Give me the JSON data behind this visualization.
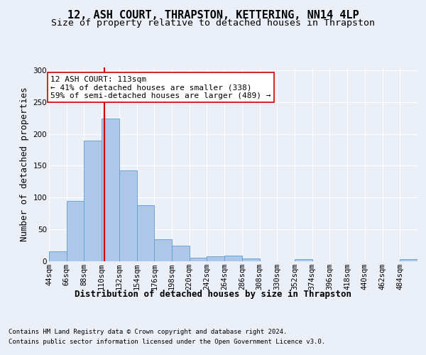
{
  "title": "12, ASH COURT, THRAPSTON, KETTERING, NN14 4LP",
  "subtitle": "Size of property relative to detached houses in Thrapston",
  "xlabel": "Distribution of detached houses by size in Thrapston",
  "ylabel": "Number of detached properties",
  "footer_line1": "Contains HM Land Registry data © Crown copyright and database right 2024.",
  "footer_line2": "Contains public sector information licensed under the Open Government Licence v3.0.",
  "bar_edges": [
    44,
    66,
    88,
    110,
    132,
    154,
    176,
    198,
    220,
    242,
    264,
    286,
    308,
    330,
    352,
    374,
    396,
    418,
    440,
    462,
    484,
    506
  ],
  "bar_heights": [
    15,
    95,
    190,
    224,
    143,
    88,
    34,
    24,
    5,
    7,
    8,
    4,
    0,
    0,
    3,
    0,
    0,
    0,
    0,
    0,
    3
  ],
  "bar_color": "#aec6e8",
  "bar_edgecolor": "#5a9fd4",
  "property_size": 113,
  "vline_color": "#cc0000",
  "annotation_line1": "12 ASH COURT: 113sqm",
  "annotation_line2": "← 41% of detached houses are smaller (338)",
  "annotation_line3": "59% of semi-detached houses are larger (489) →",
  "annotation_box_color": "#ffffff",
  "annotation_box_edgecolor": "#cc0000",
  "ylim": [
    0,
    305
  ],
  "yticks": [
    0,
    50,
    100,
    150,
    200,
    250,
    300
  ],
  "background_color": "#eaeff8",
  "axes_background": "#eaeff8",
  "grid_color": "#ffffff",
  "title_fontsize": 11,
  "subtitle_fontsize": 9.5,
  "ylabel_fontsize": 9,
  "xlabel_fontsize": 9,
  "tick_fontsize": 7.5,
  "annotation_fontsize": 8,
  "footer_fontsize": 6.5
}
